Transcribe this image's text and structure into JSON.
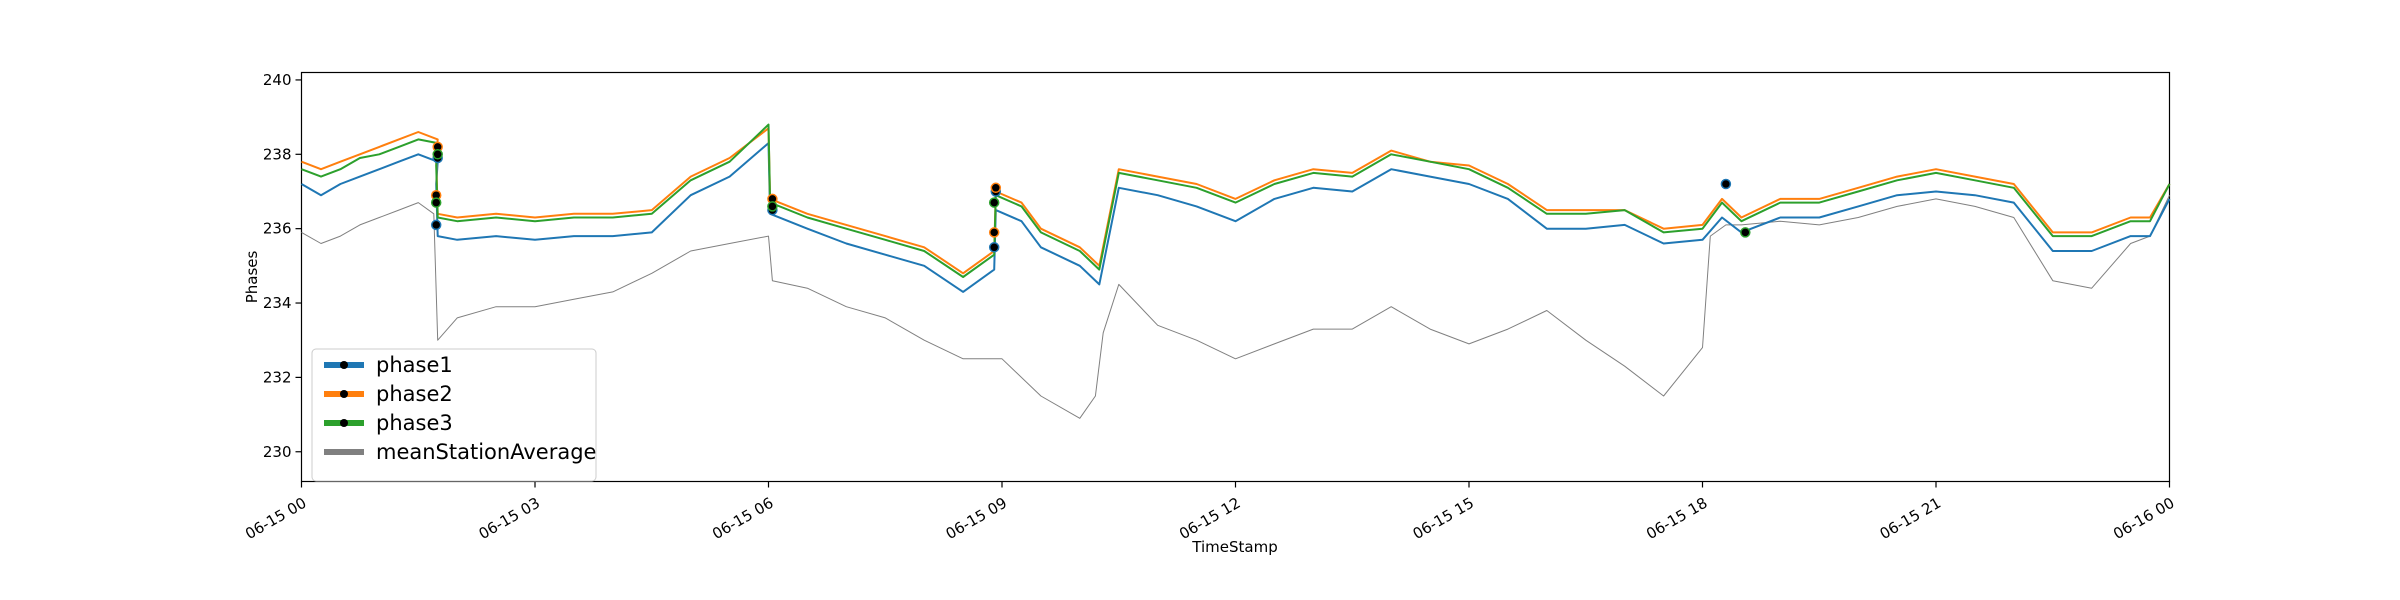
{
  "chart_data": {
    "type": "line",
    "xlabel": "TimeStamp",
    "ylabel": "Phases",
    "ylim": [
      229.2,
      240.2
    ],
    "xlim": [
      0,
      24
    ],
    "x_unit": "hours from 06-15 00:00",
    "grid": false,
    "legend_position": "lower-left",
    "x_ticks": [
      {
        "x": 0,
        "label": "06-15 00"
      },
      {
        "x": 3,
        "label": "06-15 03"
      },
      {
        "x": 6,
        "label": "06-15 06"
      },
      {
        "x": 9,
        "label": "06-15 09"
      },
      {
        "x": 12,
        "label": "06-15 12"
      },
      {
        "x": 15,
        "label": "06-15 15"
      },
      {
        "x": 18,
        "label": "06-15 18"
      },
      {
        "x": 21,
        "label": "06-15 21"
      },
      {
        "x": 24,
        "label": "06-16 00"
      }
    ],
    "y_ticks": [
      {
        "y": 230,
        "label": "230"
      },
      {
        "y": 232,
        "label": "232"
      },
      {
        "y": 234,
        "label": "234"
      },
      {
        "y": 236,
        "label": "236"
      },
      {
        "y": 238,
        "label": "238"
      },
      {
        "y": 240,
        "label": "240"
      }
    ],
    "series": [
      {
        "name": "phase1",
        "color": "#1f77b4",
        "width": 2,
        "x": [
          0.0,
          0.25,
          0.5,
          0.75,
          1.0,
          1.25,
          1.5,
          1.75,
          1.73,
          1.75,
          2.0,
          2.5,
          3.0,
          3.5,
          4.0,
          4.5,
          5.0,
          5.5,
          6.0,
          6.02,
          6.5,
          7.0,
          7.5,
          8.0,
          8.5,
          8.9,
          8.92,
          9.25,
          9.5,
          10.0,
          10.25,
          10.5,
          11.0,
          11.5,
          12.0,
          12.5,
          13.0,
          13.5,
          14.0,
          14.5,
          15.0,
          15.5,
          16.0,
          16.5,
          17.0,
          17.5,
          18.0,
          18.25,
          18.5,
          19.0,
          19.5,
          20.0,
          20.5,
          21.0,
          21.5,
          22.0,
          22.5,
          23.0,
          23.5,
          23.75,
          24.0
        ],
        "y": [
          237.2,
          236.9,
          237.2,
          237.4,
          237.6,
          237.8,
          238.0,
          237.8,
          237.2,
          235.8,
          235.7,
          235.8,
          235.7,
          235.8,
          235.8,
          235.9,
          236.9,
          237.4,
          238.3,
          236.4,
          236.0,
          235.6,
          235.3,
          235.0,
          234.3,
          234.9,
          236.5,
          236.2,
          235.5,
          235.0,
          234.5,
          237.1,
          236.9,
          236.6,
          236.2,
          236.8,
          237.1,
          237.0,
          237.6,
          237.4,
          237.2,
          236.8,
          236.0,
          236.0,
          236.1,
          235.6,
          235.7,
          236.3,
          235.9,
          236.3,
          236.3,
          236.6,
          236.9,
          237.0,
          236.9,
          236.7,
          235.4,
          235.4,
          235.8,
          235.8,
          236.8
        ]
      },
      {
        "name": "phase2",
        "color": "#ff7f0e",
        "width": 2,
        "x": [
          0.0,
          0.25,
          0.5,
          0.75,
          1.0,
          1.25,
          1.5,
          1.75,
          1.73,
          1.75,
          2.0,
          2.5,
          3.0,
          3.5,
          4.0,
          4.5,
          5.0,
          5.5,
          6.0,
          6.02,
          6.5,
          7.0,
          7.5,
          8.0,
          8.5,
          8.9,
          8.92,
          9.25,
          9.5,
          10.0,
          10.25,
          10.5,
          11.0,
          11.5,
          12.0,
          12.5,
          13.0,
          13.5,
          14.0,
          14.5,
          15.0,
          15.5,
          16.0,
          16.5,
          17.0,
          17.5,
          18.0,
          18.25,
          18.5,
          19.0,
          19.5,
          20.0,
          20.5,
          21.0,
          21.5,
          22.0,
          22.5,
          23.0,
          23.5,
          23.75,
          24.0
        ],
        "y": [
          237.8,
          237.6,
          237.8,
          238.0,
          238.2,
          238.4,
          238.6,
          238.4,
          237.9,
          236.4,
          236.3,
          236.4,
          236.3,
          236.4,
          236.4,
          236.5,
          237.4,
          237.9,
          238.7,
          236.8,
          236.4,
          236.1,
          235.8,
          235.5,
          234.8,
          235.4,
          237.0,
          236.7,
          236.0,
          235.5,
          235.0,
          237.6,
          237.4,
          237.2,
          236.8,
          237.3,
          237.6,
          237.5,
          238.1,
          237.8,
          237.7,
          237.2,
          236.5,
          236.5,
          236.5,
          236.0,
          236.1,
          236.8,
          236.3,
          236.8,
          236.8,
          237.1,
          237.4,
          237.6,
          237.4,
          237.2,
          235.9,
          235.9,
          236.3,
          236.3,
          237.2
        ]
      },
      {
        "name": "phase3",
        "color": "#2ca02c",
        "width": 2,
        "x": [
          0.0,
          0.25,
          0.5,
          0.75,
          1.0,
          1.25,
          1.5,
          1.75,
          1.73,
          1.75,
          2.0,
          2.5,
          3.0,
          3.5,
          4.0,
          4.5,
          5.0,
          5.5,
          6.0,
          6.02,
          6.5,
          7.0,
          7.5,
          8.0,
          8.5,
          8.9,
          8.92,
          9.25,
          9.5,
          10.0,
          10.25,
          10.5,
          11.0,
          11.5,
          12.0,
          12.5,
          13.0,
          13.5,
          14.0,
          14.5,
          15.0,
          15.5,
          16.0,
          16.5,
          17.0,
          17.5,
          18.0,
          18.25,
          18.5,
          19.0,
          19.5,
          20.0,
          20.5,
          21.0,
          21.5,
          22.0,
          22.5,
          23.0,
          23.5,
          23.75,
          24.0
        ],
        "y": [
          237.6,
          237.4,
          237.6,
          237.9,
          238.0,
          238.2,
          238.4,
          238.3,
          237.7,
          236.3,
          236.2,
          236.3,
          236.2,
          236.3,
          236.3,
          236.4,
          237.3,
          237.8,
          238.8,
          236.7,
          236.3,
          236.0,
          235.7,
          235.4,
          234.7,
          235.3,
          236.9,
          236.6,
          235.9,
          235.4,
          234.9,
          237.5,
          237.3,
          237.1,
          236.7,
          237.2,
          237.5,
          237.4,
          238.0,
          237.8,
          237.6,
          237.1,
          236.4,
          236.4,
          236.5,
          235.9,
          236.0,
          236.7,
          236.2,
          236.7,
          236.7,
          237.0,
          237.3,
          237.5,
          237.3,
          237.1,
          235.8,
          235.8,
          236.2,
          236.2,
          237.2
        ]
      },
      {
        "name": "meanStationAverage",
        "color": "#808080",
        "width": 1,
        "x": [
          0.0,
          0.25,
          0.5,
          0.75,
          1.0,
          1.25,
          1.5,
          1.7,
          1.75,
          2.0,
          2.5,
          3.0,
          3.5,
          4.0,
          4.5,
          5.0,
          5.5,
          6.0,
          6.05,
          6.5,
          7.0,
          7.5,
          8.0,
          8.5,
          9.0,
          9.5,
          10.0,
          10.2,
          10.3,
          10.5,
          11.0,
          11.5,
          12.0,
          12.5,
          13.0,
          13.5,
          14.0,
          14.5,
          15.0,
          15.5,
          16.0,
          16.5,
          17.0,
          17.5,
          18.0,
          18.1,
          18.3,
          18.5,
          19.0,
          19.5,
          20.0,
          20.5,
          21.0,
          21.5,
          22.0,
          22.5,
          23.0,
          23.5,
          23.75,
          24.0
        ],
        "y": [
          235.9,
          235.6,
          235.8,
          236.1,
          236.3,
          236.5,
          236.7,
          236.4,
          233.0,
          233.6,
          233.9,
          233.9,
          234.1,
          234.3,
          234.8,
          235.4,
          235.6,
          235.8,
          234.6,
          234.4,
          233.9,
          233.6,
          233.0,
          232.5,
          232.5,
          231.5,
          230.9,
          231.5,
          233.2,
          234.5,
          233.4,
          233.0,
          232.5,
          232.9,
          233.3,
          233.3,
          233.9,
          233.3,
          232.9,
          233.3,
          233.8,
          233.0,
          232.3,
          231.5,
          232.8,
          235.8,
          236.1,
          236.1,
          236.2,
          236.1,
          236.3,
          236.6,
          236.8,
          236.6,
          236.3,
          234.6,
          234.4,
          235.6,
          235.8,
          236.9
        ]
      }
    ],
    "markers": {
      "color": "#000000",
      "points": [
        {
          "series": "phase1",
          "x": 1.73,
          "y": 236.1
        },
        {
          "series": "phase2",
          "x": 1.73,
          "y": 236.9
        },
        {
          "series": "phase3",
          "x": 1.73,
          "y": 236.7
        },
        {
          "series": "phase1",
          "x": 1.75,
          "y": 237.9
        },
        {
          "series": "phase2",
          "x": 1.75,
          "y": 238.2
        },
        {
          "series": "phase3",
          "x": 1.75,
          "y": 238.0
        },
        {
          "series": "phase1",
          "x": 6.05,
          "y": 236.5
        },
        {
          "series": "phase2",
          "x": 6.05,
          "y": 236.8
        },
        {
          "series": "phase3",
          "x": 6.05,
          "y": 236.6
        },
        {
          "series": "phase1",
          "x": 8.9,
          "y": 235.5
        },
        {
          "series": "phase2",
          "x": 8.9,
          "y": 235.9
        },
        {
          "series": "phase3",
          "x": 8.9,
          "y": 236.7
        },
        {
          "series": "phase1",
          "x": 8.92,
          "y": 237.0
        },
        {
          "series": "phase2",
          "x": 8.92,
          "y": 237.1
        },
        {
          "series": "phase1",
          "x": 18.3,
          "y": 237.2
        },
        {
          "series": "phase3",
          "x": 18.55,
          "y": 235.9
        }
      ]
    }
  }
}
